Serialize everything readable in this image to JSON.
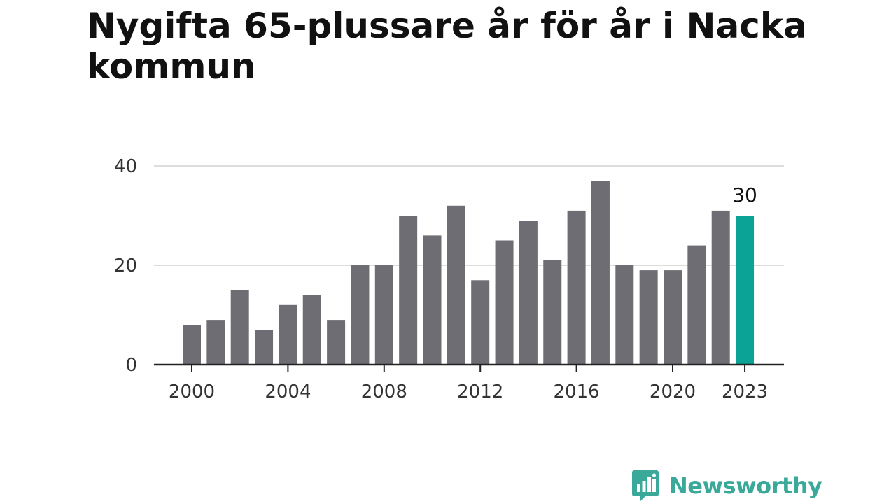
{
  "chart_data": {
    "type": "bar",
    "title": "Nygifta 65-plussare år för år i Nacka kommun",
    "xlabel": "",
    "ylabel": "",
    "ylim": [
      0,
      40
    ],
    "y_ticks": [
      0,
      20,
      40
    ],
    "categories": [
      "2000",
      "2001",
      "2002",
      "2003",
      "2004",
      "2005",
      "2006",
      "2007",
      "2008",
      "2009",
      "2010",
      "2011",
      "2012",
      "2013",
      "2014",
      "2015",
      "2016",
      "2017",
      "2018",
      "2019",
      "2020",
      "2021",
      "2022",
      "2023"
    ],
    "x_tick_labels": [
      "2000",
      "2004",
      "2008",
      "2012",
      "2016",
      "2020",
      "2023"
    ],
    "values": [
      8,
      9,
      15,
      7,
      12,
      14,
      9,
      20,
      20,
      30,
      26,
      32,
      17,
      25,
      29,
      21,
      31,
      37,
      20,
      19,
      19,
      24,
      31,
      30
    ],
    "highlight": {
      "category": "2023",
      "label": "30"
    },
    "grid": true,
    "legend": "none"
  },
  "colors": {
    "bar": "#6e6d73",
    "highlight": "#0aa396",
    "grid": "#dddddd",
    "axis": "#222222"
  },
  "branding": {
    "logo_text": "Newsworthy"
  }
}
